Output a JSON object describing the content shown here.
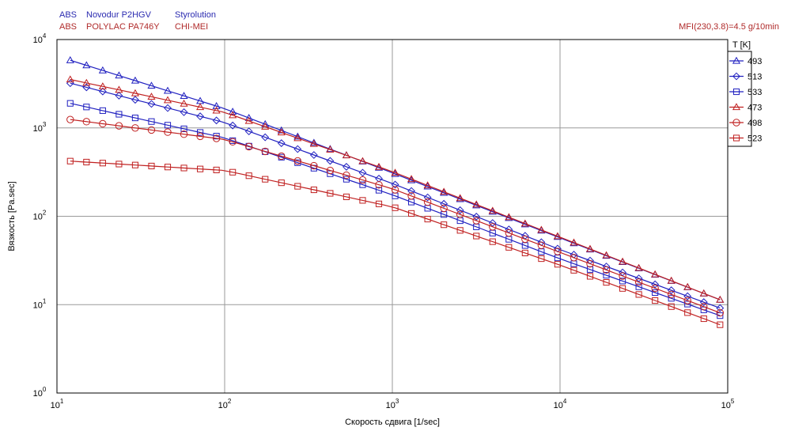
{
  "header": {
    "line1": {
      "material": "ABS",
      "grade": "Novodur P2HGV",
      "producer": "Styrolution",
      "color": "#2b2bb0"
    },
    "line2": {
      "material": "ABS",
      "grade": "POLYLAC PA746Y",
      "producer": "CHI-MEI",
      "color": "#b02b2b"
    },
    "mfi": "MFI(230,3.8)=4.5 g/10min"
  },
  "chart_data": {
    "type": "line",
    "xlabel": "Скорость сдвига [1/sec]",
    "ylabel": "Вязкость [Pa.sec]",
    "xscale": "log",
    "yscale": "log",
    "xlim": [
      10,
      100000
    ],
    "ylim": [
      1,
      10000
    ],
    "x_ticks": [
      {
        "base": "10",
        "exp": "1"
      },
      {
        "base": "10",
        "exp": "2"
      },
      {
        "base": "10",
        "exp": "3"
      },
      {
        "base": "10",
        "exp": "4"
      },
      {
        "base": "10",
        "exp": "5"
      }
    ],
    "y_ticks": [
      {
        "base": "10",
        "exp": "0"
      },
      {
        "base": "10",
        "exp": "1"
      },
      {
        "base": "10",
        "exp": "2"
      },
      {
        "base": "10",
        "exp": "3"
      },
      {
        "base": "10",
        "exp": "4"
      }
    ],
    "grid": true,
    "legend_title": "T [K]",
    "legend_position": "right",
    "x": [
      10,
      100,
      1000,
      10000,
      100000
    ],
    "series": [
      {
        "name": "493",
        "marker": "triangle",
        "color": "#2020c0",
        "values": [
          6500,
          1650,
          310,
          57,
          10.5
        ]
      },
      {
        "name": "513",
        "marker": "diamond",
        "color": "#2020c0",
        "values": [
          3500,
          1150,
          235,
          42,
          8.5
        ]
      },
      {
        "name": "533",
        "marker": "square",
        "color": "#2020c0",
        "values": [
          2050,
          770,
          175,
          33,
          7.0
        ]
      },
      {
        "name": "473",
        "marker": "triangle",
        "color": "#c02020",
        "values": [
          3800,
          1500,
          320,
          58,
          10.5
        ]
      },
      {
        "name": "498",
        "marker": "circle",
        "color": "#c02020",
        "values": [
          1300,
          740,
          205,
          39,
          7.5
        ]
      },
      {
        "name": "523",
        "marker": "square",
        "color": "#c02020",
        "values": [
          430,
          330,
          128,
          28,
          5.5
        ]
      }
    ]
  }
}
